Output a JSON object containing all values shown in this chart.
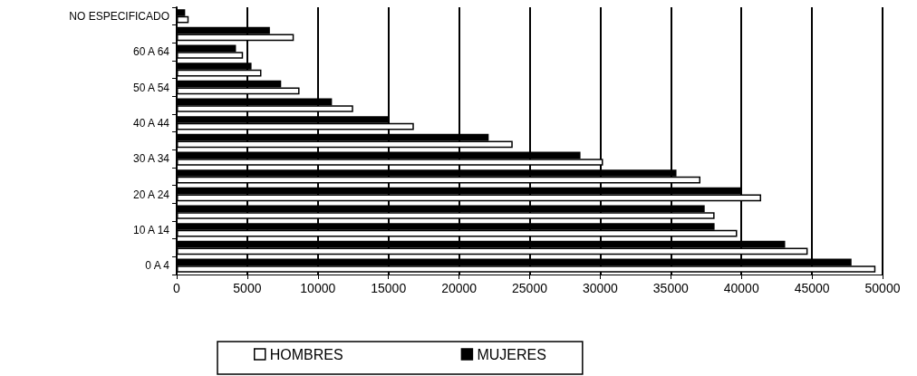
{
  "chart_data": {
    "type": "bar",
    "orientation": "horizontal",
    "categories": [
      "NO ESPECIFICADO",
      null,
      "60 A 64",
      null,
      "50 A 54",
      null,
      "40 A 44",
      null,
      "30 A 34",
      null,
      "20 A 24",
      null,
      "10 A 14",
      null,
      "0 A 4"
    ],
    "series": [
      {
        "name": "HOMBRES",
        "color": "#ffffff",
        "values": [
          850,
          8300,
          4700,
          6000,
          8700,
          12500,
          16800,
          23800,
          30200,
          37100,
          41400,
          38100,
          39700,
          44700,
          49500
        ]
      },
      {
        "name": "MUJERES",
        "color": "#000000",
        "values": [
          600,
          6600,
          4200,
          5300,
          7400,
          11000,
          15000,
          22100,
          28600,
          35400,
          40000,
          37400,
          38100,
          43100,
          47800
        ]
      }
    ],
    "xlim": [
      0,
      50000
    ],
    "xticks": [
      0,
      5000,
      10000,
      15000,
      20000,
      25000,
      30000,
      35000,
      40000,
      45000,
      50000
    ],
    "grid": "x",
    "legend": "bottom"
  }
}
